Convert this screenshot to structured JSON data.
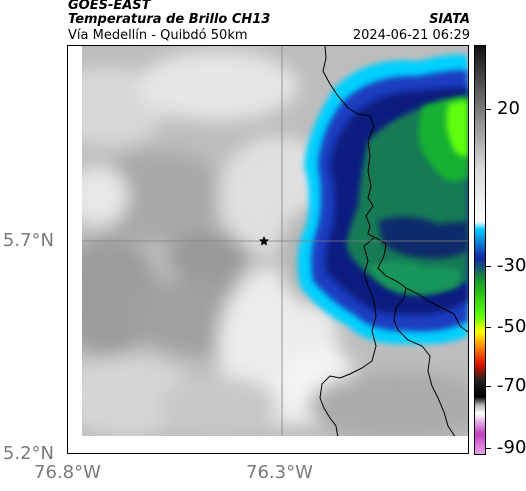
{
  "header": {
    "source": "GOES-EAST",
    "product": "Temperatura de Brillo CH13",
    "region": "Vía Medellín - Quibdó 50km",
    "agency": "SIATA",
    "datetime": "2024-06-21 06:29"
  },
  "axes": {
    "y_ticks": [
      "5.7°N",
      "5.2°N"
    ],
    "x_ticks": [
      "76.8°W",
      "76.3°W"
    ]
  },
  "colorbar": {
    "labels": [
      "20",
      "-30",
      "-50",
      "-70",
      "-90"
    ],
    "colors": {
      "warm_top": "#111111",
      "gray_mid": "#9a9a9a",
      "white": "#ffffff",
      "cyan": "#00c8ff",
      "blue": "#1428a0",
      "green": "#1aa028",
      "lime": "#5aff00",
      "yellow": "#ffff00",
      "red": "#e01000",
      "black": "#000000",
      "magenta": "#c040c0"
    }
  },
  "map": {
    "marker_icon": "star-icon",
    "background_gray": "#bdbdbd",
    "cloud_white": "#f2f2f2"
  }
}
